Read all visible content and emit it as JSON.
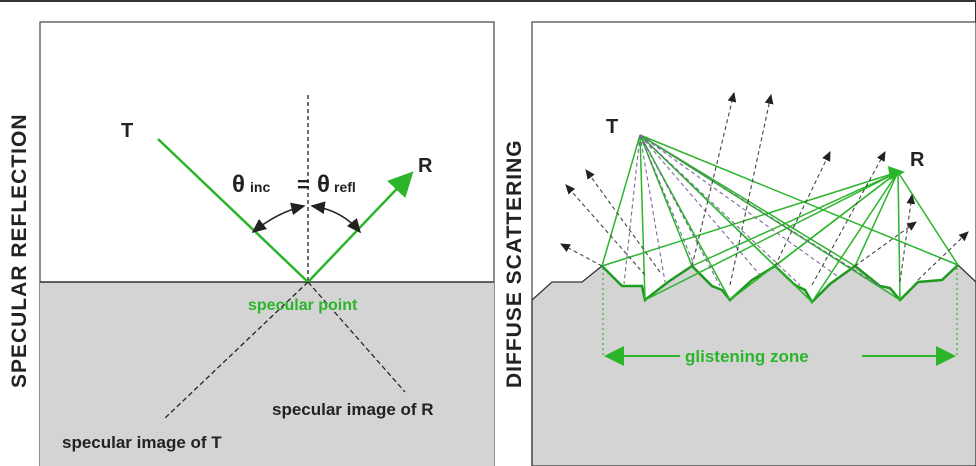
{
  "left_panel": {
    "side_title": "SPECULAR REFLECTION",
    "transmitter_label": "T",
    "receiver_label": "R",
    "theta_symbol": "θ",
    "incidence_sub": "inc",
    "equals_label": "=",
    "reflection_sub": "refl",
    "specular_point_label": "specular point",
    "image_r_label": "specular image of R",
    "image_t_label": "specular image of T"
  },
  "right_panel": {
    "side_title": "DIFFUSE SCATTERING",
    "transmitter_label": "T",
    "receiver_label": "R",
    "glistening_zone_label": "glistening zone"
  },
  "colors": {
    "green": "#2bb52b",
    "dark_green": "#1e9a1e",
    "ground": "#d4d4d4",
    "line": "#333333"
  }
}
